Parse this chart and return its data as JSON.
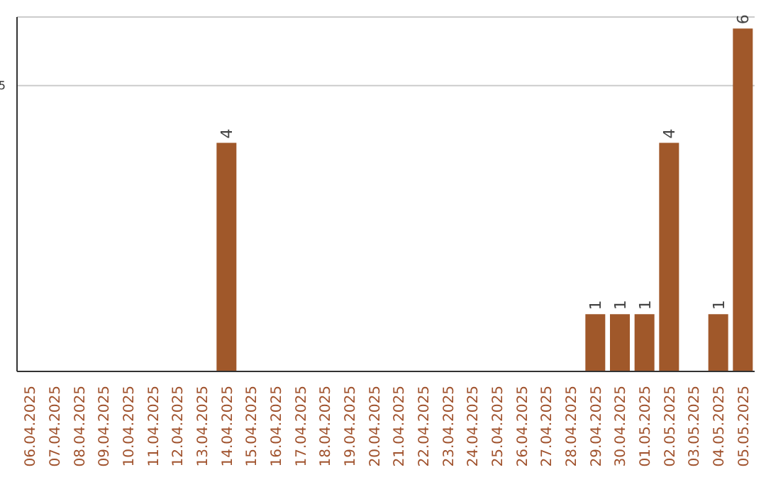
{
  "chart_data": {
    "type": "bar",
    "categories": [
      "06.04.2025",
      "07.04.2025",
      "08.04.2025",
      "09.04.2025",
      "10.04.2025",
      "11.04.2025",
      "12.04.2025",
      "13.04.2025",
      "14.04.2025",
      "15.04.2025",
      "16.04.2025",
      "17.04.2025",
      "18.04.2025",
      "19.04.2025",
      "20.04.2025",
      "21.04.2025",
      "22.04.2025",
      "23.04.2025",
      "24.04.2025",
      "25.04.2025",
      "26.04.2025",
      "27.04.2025",
      "28.04.2025",
      "29.04.2025",
      "30.04.2025",
      "01.05.2025",
      "02.05.2025",
      "03.05.2025",
      "04.05.2025",
      "05.05.2025"
    ],
    "values": [
      0,
      0,
      0,
      0,
      0,
      0,
      0,
      0,
      4,
      0,
      0,
      0,
      0,
      0,
      0,
      0,
      0,
      0,
      0,
      0,
      0,
      0,
      0,
      1,
      1,
      1,
      4,
      0,
      1,
      6
    ],
    "value_labels": [
      null,
      null,
      null,
      null,
      null,
      null,
      null,
      null,
      "4",
      null,
      null,
      null,
      null,
      null,
      null,
      null,
      null,
      null,
      null,
      null,
      null,
      null,
      null,
      "1",
      "1",
      "1",
      "4",
      null,
      "1",
      "6"
    ],
    "color": "#a0582a",
    "ylim": [
      0,
      6.2
    ],
    "yticks": [
      5
    ],
    "grid": "y"
  }
}
